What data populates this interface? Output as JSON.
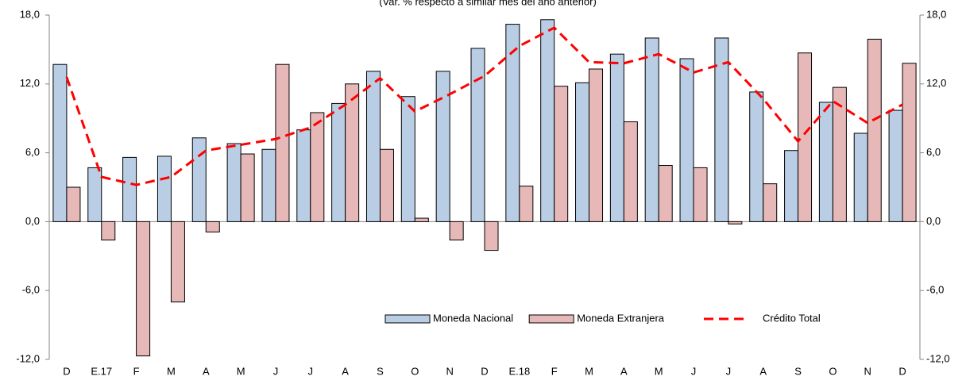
{
  "chart_data": {
    "type": "bar",
    "subtitle": "(Var. % respecto a similar mes del año anterior)",
    "categories": [
      "D",
      "E.17",
      "F",
      "M",
      "A",
      "M",
      "J",
      "J",
      "A",
      "S",
      "O",
      "N",
      "D",
      "E.18",
      "F",
      "M",
      "A",
      "M",
      "J",
      "J",
      "A",
      "S",
      "O",
      "N",
      "D"
    ],
    "series": [
      {
        "name": "Moneda Nacional",
        "type": "bar",
        "color": "#b9cde5",
        "values": [
          13.7,
          4.7,
          5.6,
          5.7,
          7.3,
          6.8,
          6.3,
          8.0,
          10.3,
          13.1,
          10.9,
          13.1,
          15.1,
          17.2,
          17.6,
          12.1,
          14.6,
          16.0,
          14.2,
          16.0,
          11.3,
          6.2,
          10.4,
          7.7,
          9.7
        ]
      },
      {
        "name": "Moneda Extranjera",
        "type": "bar",
        "color": "#e6b9b8",
        "values": [
          3.0,
          -1.6,
          -11.7,
          -7.0,
          -0.9,
          5.9,
          13.7,
          9.5,
          12.0,
          6.3,
          0.3,
          -1.6,
          -2.5,
          3.1,
          11.8,
          13.3,
          8.7,
          4.9,
          4.7,
          -0.2,
          3.3,
          14.7,
          11.7,
          15.9,
          13.8
        ]
      },
      {
        "name": "Crédito Total",
        "type": "line",
        "color": "#ff0000",
        "dashed": true,
        "values": [
          12.6,
          3.9,
          3.2,
          3.9,
          6.2,
          6.7,
          7.2,
          8.2,
          10.2,
          12.5,
          9.6,
          11.1,
          12.7,
          15.3,
          16.9,
          13.9,
          13.8,
          14.6,
          13.0,
          13.9,
          10.7,
          7.0,
          10.5,
          8.6,
          10.2
        ]
      }
    ],
    "ylim": [
      -12,
      18
    ],
    "yticks": [
      {
        "value": -12,
        "label": "-12,0"
      },
      {
        "value": -6,
        "label": "-6,0"
      },
      {
        "value": 0,
        "label": "0,0"
      },
      {
        "value": 6,
        "label": "6,0"
      },
      {
        "value": 12,
        "label": "12,0"
      },
      {
        "value": 18,
        "label": "18,0"
      }
    ],
    "y2lim": [
      -12,
      18
    ],
    "y2ticks": [
      {
        "value": -12,
        "label": "-12,0"
      },
      {
        "value": -6,
        "label": "-6,0"
      },
      {
        "value": 0,
        "label": "0,0"
      },
      {
        "value": 6,
        "label": "6,0"
      },
      {
        "value": 12,
        "label": "12,0"
      },
      {
        "value": 18,
        "label": "18,0"
      }
    ],
    "legend": "lower-right"
  }
}
